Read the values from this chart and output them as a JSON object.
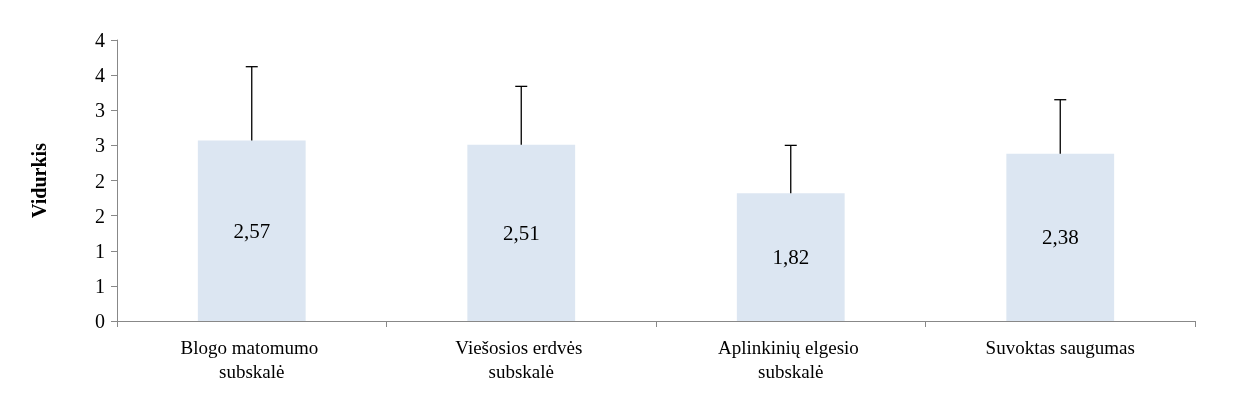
{
  "chart_data": {
    "type": "bar",
    "ylabel": "Vidurkis",
    "categories": [
      "Blogo matomumo subskalė",
      "Viešosios erdvės subskalė",
      "Aplinkinių elgesio subskalė",
      "Suvoktas saugumas"
    ],
    "values": [
      2.57,
      2.51,
      1.82,
      2.38
    ],
    "value_labels": [
      "2,57",
      "2,51",
      "1,82",
      "2,38"
    ],
    "errors": [
      [
        2.57,
        3.62
      ],
      [
        2.51,
        3.34
      ],
      [
        1.82,
        2.5
      ],
      [
        2.38,
        3.15
      ]
    ],
    "color": "#dce6f2",
    "ylim": [
      0,
      4
    ],
    "yticks": [
      0,
      {
        "value": 0.5,
        "label": "1"
      },
      1,
      {
        "value": 1.5,
        "label": "2"
      },
      2,
      {
        "value": 2.5,
        "label": "3"
      },
      3,
      {
        "value": 3.5,
        "label": "4"
      },
      4
    ],
    "grid": false
  }
}
